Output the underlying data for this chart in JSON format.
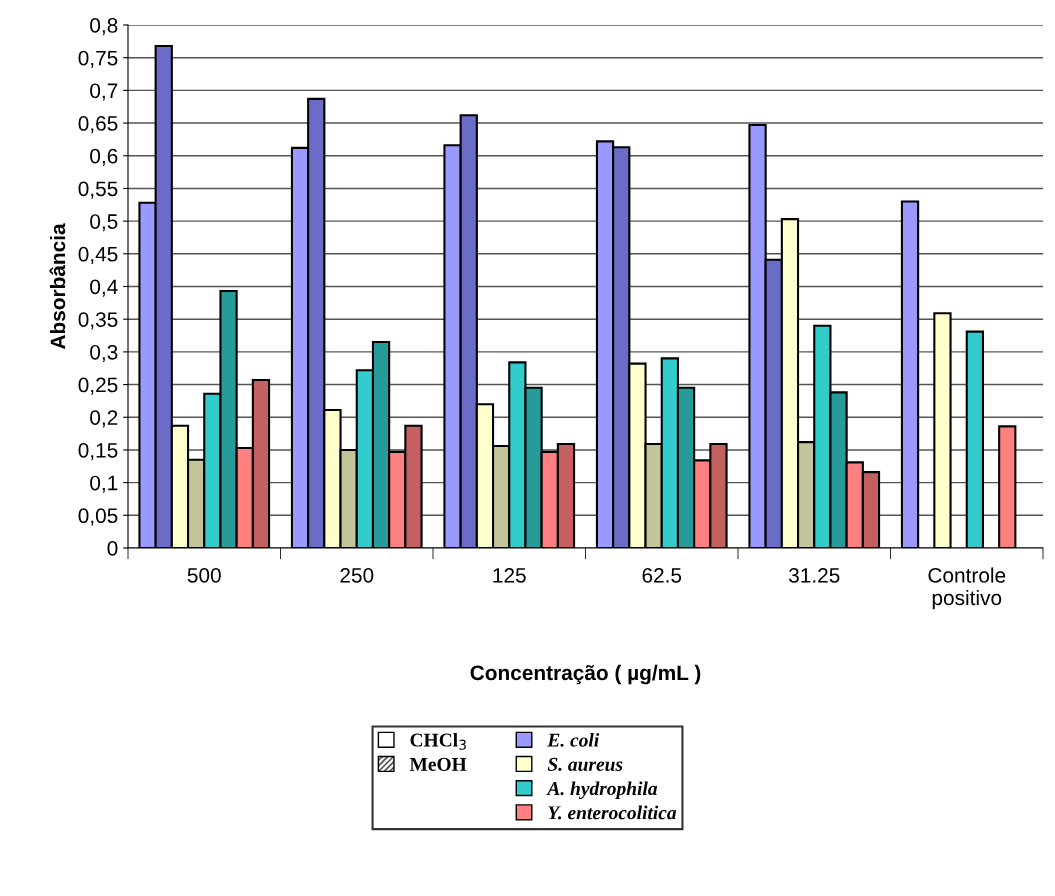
{
  "chart_data": {
    "type": "bar",
    "xlabel": "Concentração ( µg/mL )",
    "ylabel": "Absorbância",
    "categories": [
      "500",
      "250",
      "125",
      "62.5",
      "31.25",
      "Controle\npositivo"
    ],
    "series": [
      {
        "name": "E. coli",
        "color": "#9999ff",
        "values": [
          0.528,
          0.612,
          0.616,
          0.622,
          0.647,
          0.53
        ]
      },
      {
        "color": "#6b6bc8",
        "values": [
          0.768,
          0.687,
          0.662,
          0.613,
          0.441,
          null
        ]
      },
      {
        "name": "S. aureus",
        "color": "#ffffcc",
        "values": [
          0.187,
          0.211,
          0.22,
          0.282,
          0.503,
          0.359
        ]
      },
      {
        "color": "#c4c49a",
        "values": [
          0.135,
          0.15,
          0.156,
          0.159,
          0.162,
          null
        ]
      },
      {
        "name": "A. hydrophila",
        "color": "#33cccc",
        "values": [
          0.236,
          0.272,
          0.284,
          0.29,
          0.34,
          0.331
        ]
      },
      {
        "color": "#279a9a",
        "values": [
          0.393,
          0.315,
          0.245,
          0.245,
          0.238,
          null
        ]
      },
      {
        "name": "Y. enterocolitica",
        "color": "#ff8080",
        "values": [
          0.153,
          0.147,
          0.147,
          0.134,
          0.131,
          0.186
        ]
      },
      {
        "color": "#c46060",
        "values": [
          0.257,
          0.187,
          0.159,
          0.159,
          0.116,
          null
        ]
      }
    ],
    "annotations": [
      "CHCl$_{3}$",
      "MeOH"
    ],
    "ylim": [
      0,
      0.8
    ],
    "yticks": [
      0,
      {
        "value": 0.05,
        "label": "0,05"
      },
      {
        "value": 0.1,
        "label": "0,1"
      },
      {
        "value": 0.15,
        "label": "0,15"
      },
      {
        "value": 0.2,
        "label": "0,2"
      },
      {
        "value": 0.25,
        "label": "0,25"
      },
      {
        "value": 0.3,
        "label": "0,3"
      },
      {
        "value": 0.35,
        "label": "0,35"
      },
      {
        "value": 0.4,
        "label": "0,4"
      },
      {
        "value": 0.45,
        "label": "0,45"
      },
      {
        "value": 0.5,
        "label": "0,5"
      },
      {
        "value": 0.55,
        "label": "0,55"
      },
      {
        "value": 0.6,
        "label": "0,6"
      },
      {
        "value": 0.65,
        "label": "0,65"
      },
      {
        "value": 0.7,
        "label": "0,7"
      },
      {
        "value": 0.75,
        "label": "0,75"
      },
      {
        "value": 0.8,
        "label": "0,8"
      }
    ],
    "grid": "y",
    "legend": "bottom"
  }
}
